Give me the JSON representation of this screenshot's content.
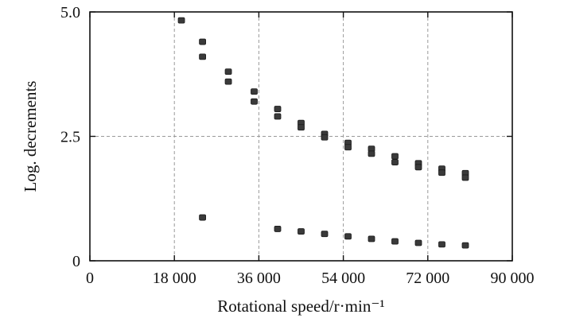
{
  "chart_data": {
    "type": "scatter",
    "title": "",
    "xlabel": "Rotational speed/r·min⁻¹",
    "ylabel": "Log. decrements",
    "xlim": [
      0,
      90000
    ],
    "ylim": [
      0,
      5.0
    ],
    "x_ticks": [
      0,
      18000,
      36000,
      54000,
      72000,
      90000
    ],
    "x_tick_labels": [
      "0",
      "18 000",
      "36 000",
      "54 000",
      "72 000",
      "90 000"
    ],
    "y_ticks": [
      0,
      2.5,
      5.0
    ],
    "y_tick_labels": [
      "0",
      "2.5",
      "5.0"
    ],
    "grid": true,
    "legend": "none",
    "marker_color": "#3a3a3a",
    "series": [
      {
        "points": [
          [
            19500,
            4.83
          ],
          [
            24000,
            4.4
          ],
          [
            24000,
            4.1
          ],
          [
            29500,
            3.8
          ],
          [
            29500,
            3.6
          ],
          [
            35000,
            3.4
          ],
          [
            35000,
            3.2
          ],
          [
            40000,
            3.05
          ],
          [
            40000,
            2.9
          ],
          [
            45000,
            2.77
          ],
          [
            45000,
            2.68
          ],
          [
            50000,
            2.55
          ],
          [
            50000,
            2.48
          ],
          [
            55000,
            2.37
          ],
          [
            55000,
            2.28
          ],
          [
            60000,
            2.25
          ],
          [
            60000,
            2.15
          ],
          [
            65000,
            2.1
          ],
          [
            65000,
            1.98
          ],
          [
            70000,
            1.96
          ],
          [
            70000,
            1.88
          ],
          [
            75000,
            1.85
          ],
          [
            75000,
            1.77
          ],
          [
            80000,
            1.76
          ],
          [
            80000,
            1.67
          ]
        ]
      },
      {
        "points": [
          [
            24000,
            0.87
          ],
          [
            40000,
            0.64
          ],
          [
            45000,
            0.59
          ],
          [
            50000,
            0.54
          ],
          [
            55000,
            0.49
          ],
          [
            60000,
            0.44
          ],
          [
            65000,
            0.39
          ],
          [
            70000,
            0.36
          ],
          [
            75000,
            0.33
          ],
          [
            80000,
            0.31
          ]
        ]
      }
    ]
  }
}
